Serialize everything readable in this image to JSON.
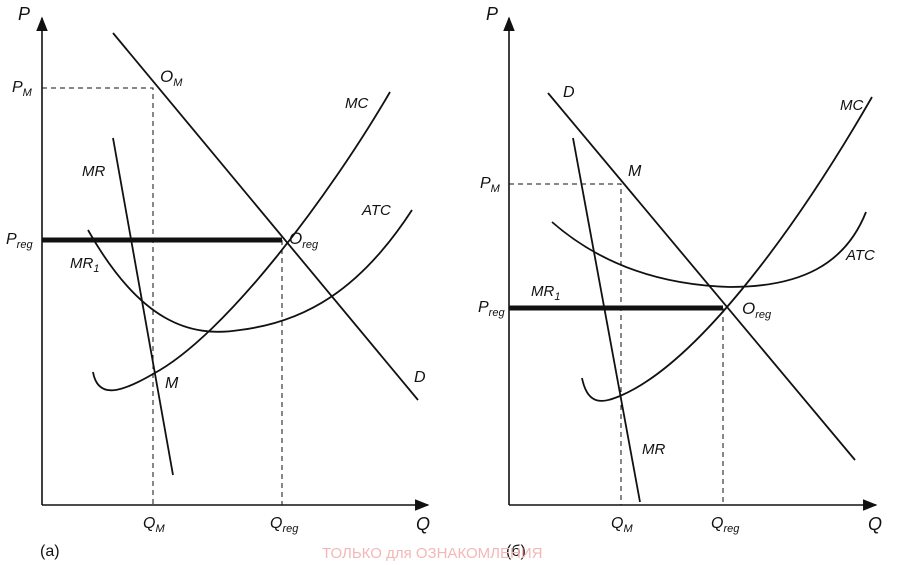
{
  "panel_a": {
    "caption": "(a)",
    "axis_y": "P",
    "axis_x": "Q",
    "price_monopoly": {
      "main": "P",
      "sub": "M"
    },
    "price_regulated": {
      "main": "P",
      "sub": "reg"
    },
    "qty_monopoly": {
      "main": "Q",
      "sub": "M"
    },
    "qty_regulated": {
      "main": "Q",
      "sub": "reg"
    },
    "point_om": {
      "main": "O",
      "sub": "M"
    },
    "point_oreg": {
      "main": "O",
      "sub": "reg"
    },
    "point_m": "M",
    "curve_mc": "MC",
    "curve_atc": "ATC",
    "curve_mr": "MR",
    "curve_mr1": {
      "main": "MR",
      "sub": "1"
    },
    "curve_d": "D"
  },
  "panel_b": {
    "caption": "(б)",
    "axis_y": "P",
    "axis_x": "Q",
    "price_monopoly": {
      "main": "P",
      "sub": "M"
    },
    "price_regulated": {
      "main": "P",
      "sub": "reg"
    },
    "qty_monopoly": {
      "main": "Q",
      "sub": "M"
    },
    "qty_regulated": {
      "main": "Q",
      "sub": "reg"
    },
    "point_m": "M",
    "point_oreg": {
      "main": "O",
      "sub": "reg"
    },
    "curve_mc": "MC",
    "curve_atc": "ATC",
    "curve_mr": "MR",
    "curve_mr1": {
      "main": "MR",
      "sub": "1"
    },
    "curve_d": "D"
  },
  "watermark": "ТОЛЬКО для ОЗНАКОМЛЕНИЯ"
}
